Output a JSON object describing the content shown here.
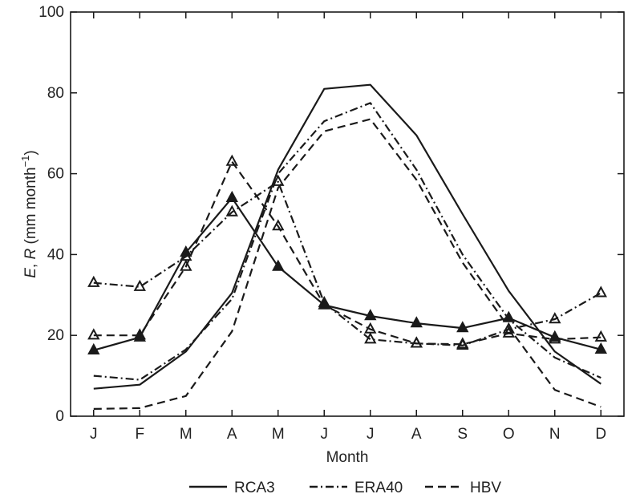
{
  "chart_data": {
    "type": "line",
    "xlabel": "Month",
    "ylabel_parts": {
      "var1": "E",
      "sep": ", ",
      "var2": "R",
      "unit_open": " (mm month",
      "unit_exp": "−1",
      "unit_close": ")"
    },
    "categories": [
      "J",
      "F",
      "M",
      "A",
      "M",
      "J",
      "J",
      "A",
      "S",
      "O",
      "N",
      "D"
    ],
    "ylim": [
      0,
      100
    ],
    "yticks": [
      0,
      20,
      40,
      60,
      80,
      100
    ],
    "grid": false,
    "legend_position": "bottom",
    "legend": [
      "RCA3",
      "ERA40",
      "HBV"
    ],
    "series": [
      {
        "name": "RCA3",
        "variable": "E",
        "style": "solid",
        "marker": "none",
        "values": [
          6.8,
          7.8,
          16,
          30.5,
          61,
          81,
          82,
          69.5,
          50,
          31,
          16,
          8
        ]
      },
      {
        "name": "ERA40",
        "variable": "E",
        "style": "dashdot",
        "marker": "none",
        "values": [
          10,
          9,
          16.5,
          29,
          60,
          73,
          77.5,
          61,
          40,
          24,
          14.5,
          9.5
        ]
      },
      {
        "name": "HBV",
        "variable": "E",
        "style": "dashed",
        "marker": "none",
        "values": [
          1.8,
          2,
          5,
          21,
          56.5,
          70.5,
          73.5,
          58.5,
          38,
          22,
          6.5,
          2.3
        ]
      },
      {
        "name": "RCA3",
        "variable": "R",
        "style": "solid",
        "marker": "filled-triangle",
        "values": [
          16.3,
          19.5,
          40.5,
          54,
          37,
          27.5,
          24.8,
          23,
          21.8,
          24.3,
          19.5,
          16.5
        ]
      },
      {
        "name": "ERA40",
        "variable": "R",
        "style": "dashdot",
        "marker": "open-triangle",
        "values": [
          33,
          32,
          39.5,
          50.5,
          58,
          28,
          19,
          18,
          17.5,
          21.5,
          24,
          30.5
        ]
      },
      {
        "name": "HBV",
        "variable": "R",
        "style": "dashed",
        "marker": "open-triangle",
        "values": [
          20,
          20,
          37,
          63,
          47,
          27.5,
          21.5,
          18,
          17.8,
          20.5,
          19,
          19.5
        ]
      }
    ],
    "styles": {
      "line_color": "#1a1a1a",
      "background": "#ffffff"
    }
  }
}
